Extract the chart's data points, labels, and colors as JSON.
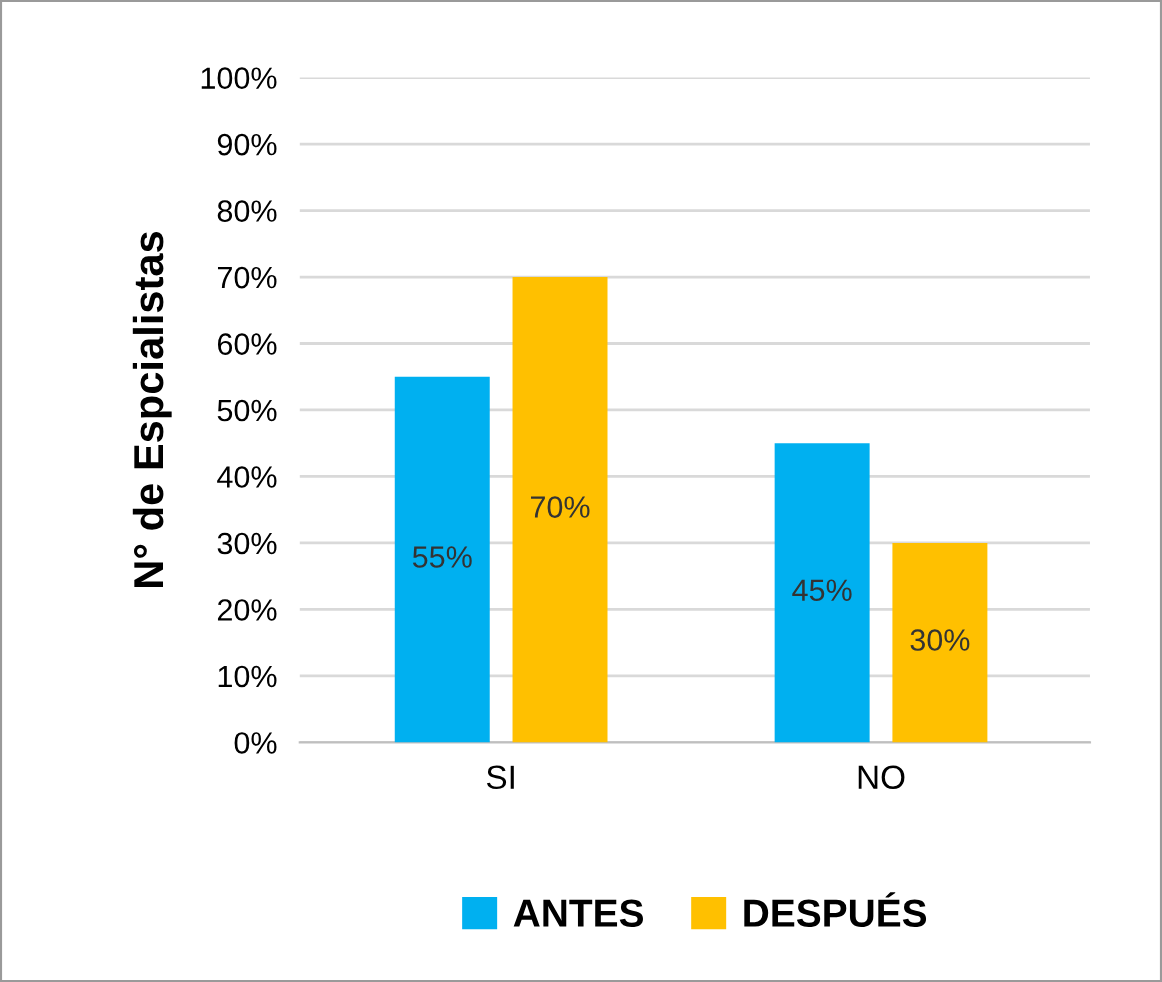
{
  "chart_data": {
    "type": "bar",
    "ylabel": "N° de Espcialistas",
    "categories": [
      "SI",
      "NO"
    ],
    "series": [
      {
        "name": "ANTES",
        "color": "#00b0f0",
        "values": [
          55,
          45
        ],
        "value_labels": [
          "55%",
          "45%"
        ]
      },
      {
        "name": "DESPUÉS",
        "color": "#ffc000",
        "values": [
          70,
          30
        ],
        "value_labels": [
          "70%",
          "30%"
        ]
      }
    ],
    "ylim": [
      0,
      100
    ],
    "yticks": [
      {
        "value": 0,
        "label": "0%"
      },
      {
        "value": 10,
        "label": "10%"
      },
      {
        "value": 20,
        "label": "20%"
      },
      {
        "value": 30,
        "label": "30%"
      },
      {
        "value": 40,
        "label": "40%"
      },
      {
        "value": 50,
        "label": "50%"
      },
      {
        "value": 60,
        "label": "60%"
      },
      {
        "value": 70,
        "label": "70%"
      },
      {
        "value": 80,
        "label": "80%"
      },
      {
        "value": 90,
        "label": "90%"
      },
      {
        "value": 100,
        "label": "100%"
      }
    ],
    "grid": "y",
    "legend": "bottom"
  }
}
